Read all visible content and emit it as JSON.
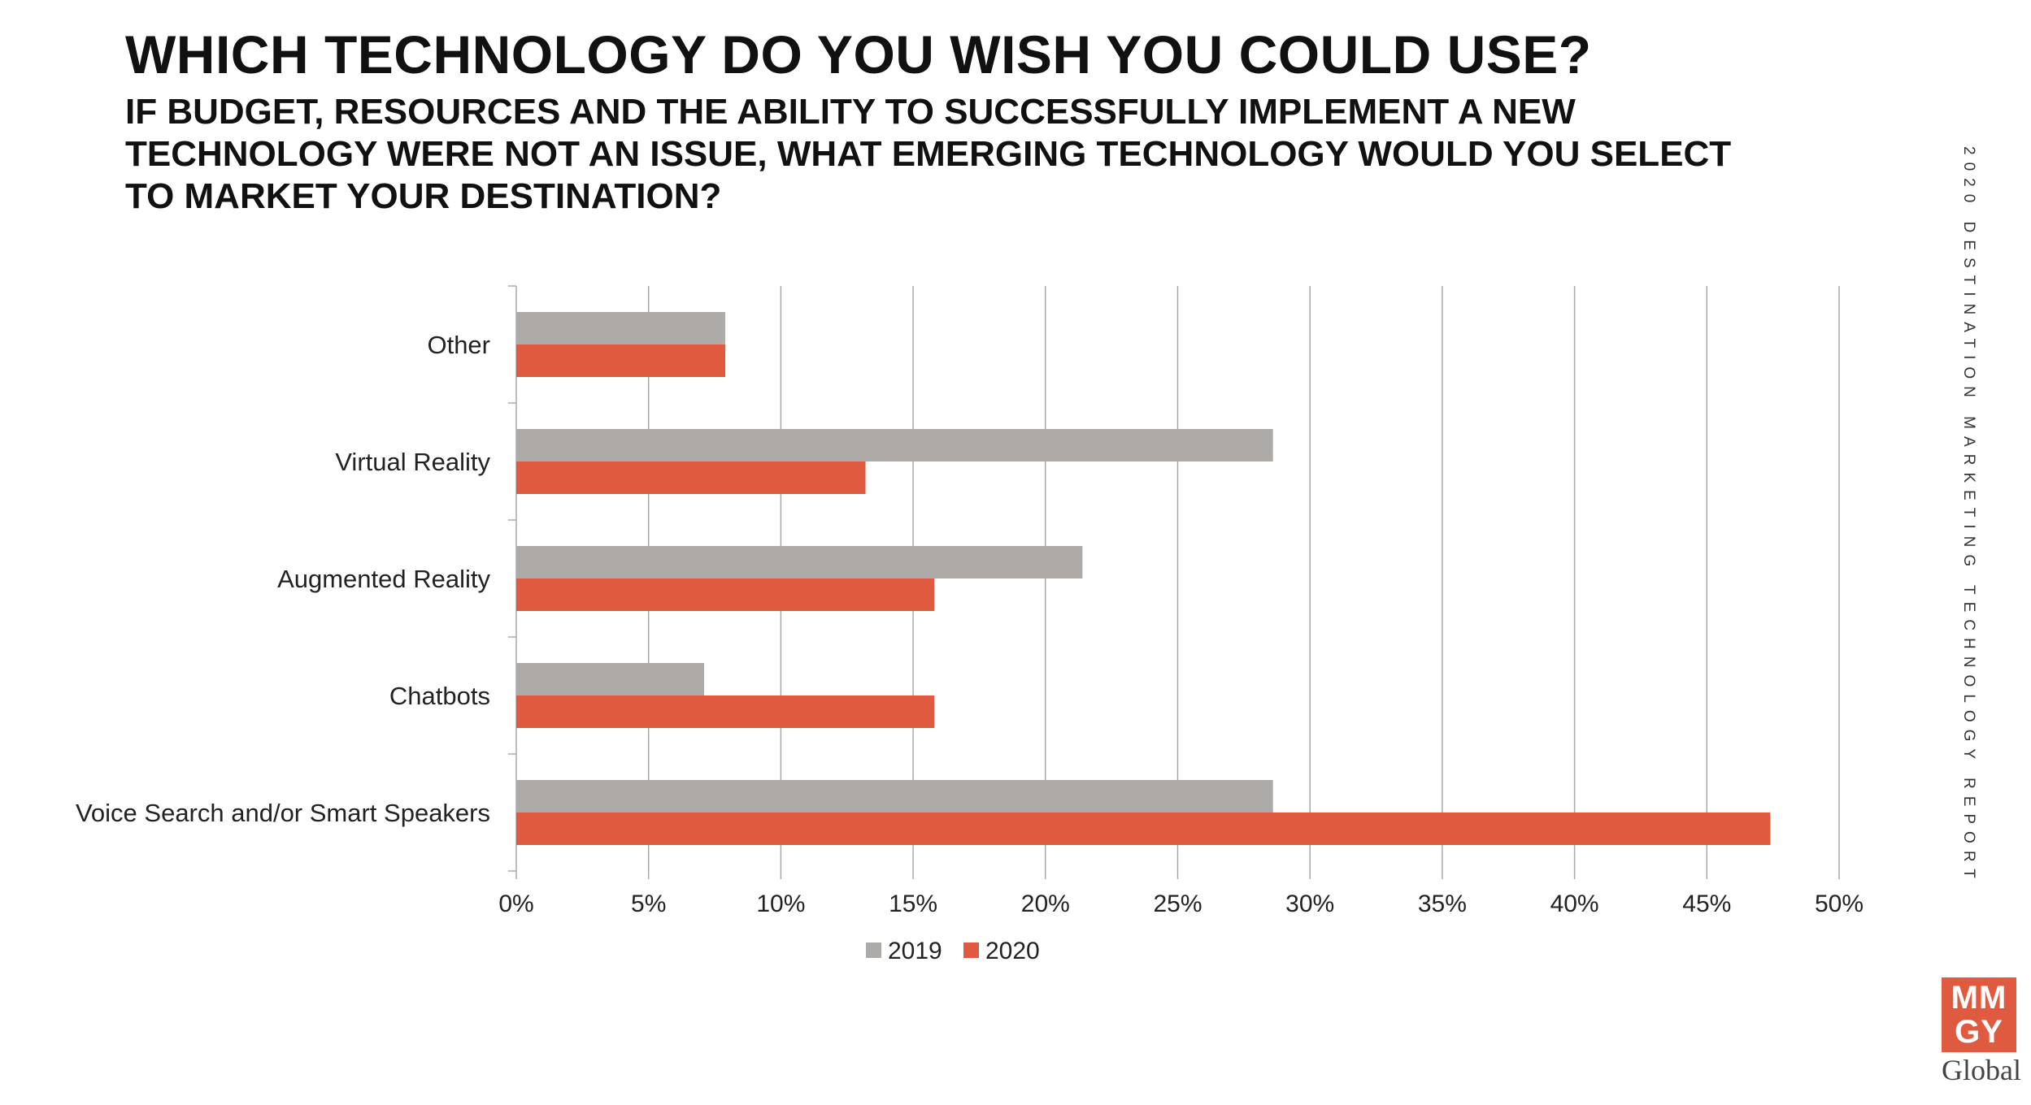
{
  "header": {
    "title": "WHICH TECHNOLOGY DO YOU WISH YOU COULD USE?",
    "subtitle": "IF BUDGET, RESOURCES AND THE ABILITY TO SUCCESSFULLY IMPLEMENT A NEW TECHNOLOGY WERE NOT AN ISSUE, WHAT EMERGING TECHNOLOGY WOULD YOU SELECT TO MARKET YOUR DESTINATION?"
  },
  "side_label": "2020 DESTINATION MARKETING TECHNOLOGY REPORT",
  "logo": {
    "line1": "MM",
    "line2": "GY",
    "word": "Global"
  },
  "chart_data": {
    "type": "bar",
    "orientation": "horizontal",
    "categories": [
      "Other",
      "Virtual Reality",
      "Augmented Reality",
      "Chatbots",
      "Voice Search and/or Smart Speakers"
    ],
    "series": [
      {
        "name": "2019",
        "color": "#aeaaa8",
        "values": [
          7.9,
          28.6,
          21.4,
          7.1,
          28.6
        ]
      },
      {
        "name": "2020",
        "color": "#e05a40",
        "values": [
          7.9,
          13.2,
          15.8,
          15.8,
          47.4
        ]
      }
    ],
    "xlim": [
      0,
      50
    ],
    "xticks": [
      "0%",
      "5%",
      "10%",
      "15%",
      "20%",
      "25%",
      "30%",
      "35%",
      "40%",
      "45%",
      "50%"
    ],
    "grid": true,
    "legend_position": "bottom"
  }
}
